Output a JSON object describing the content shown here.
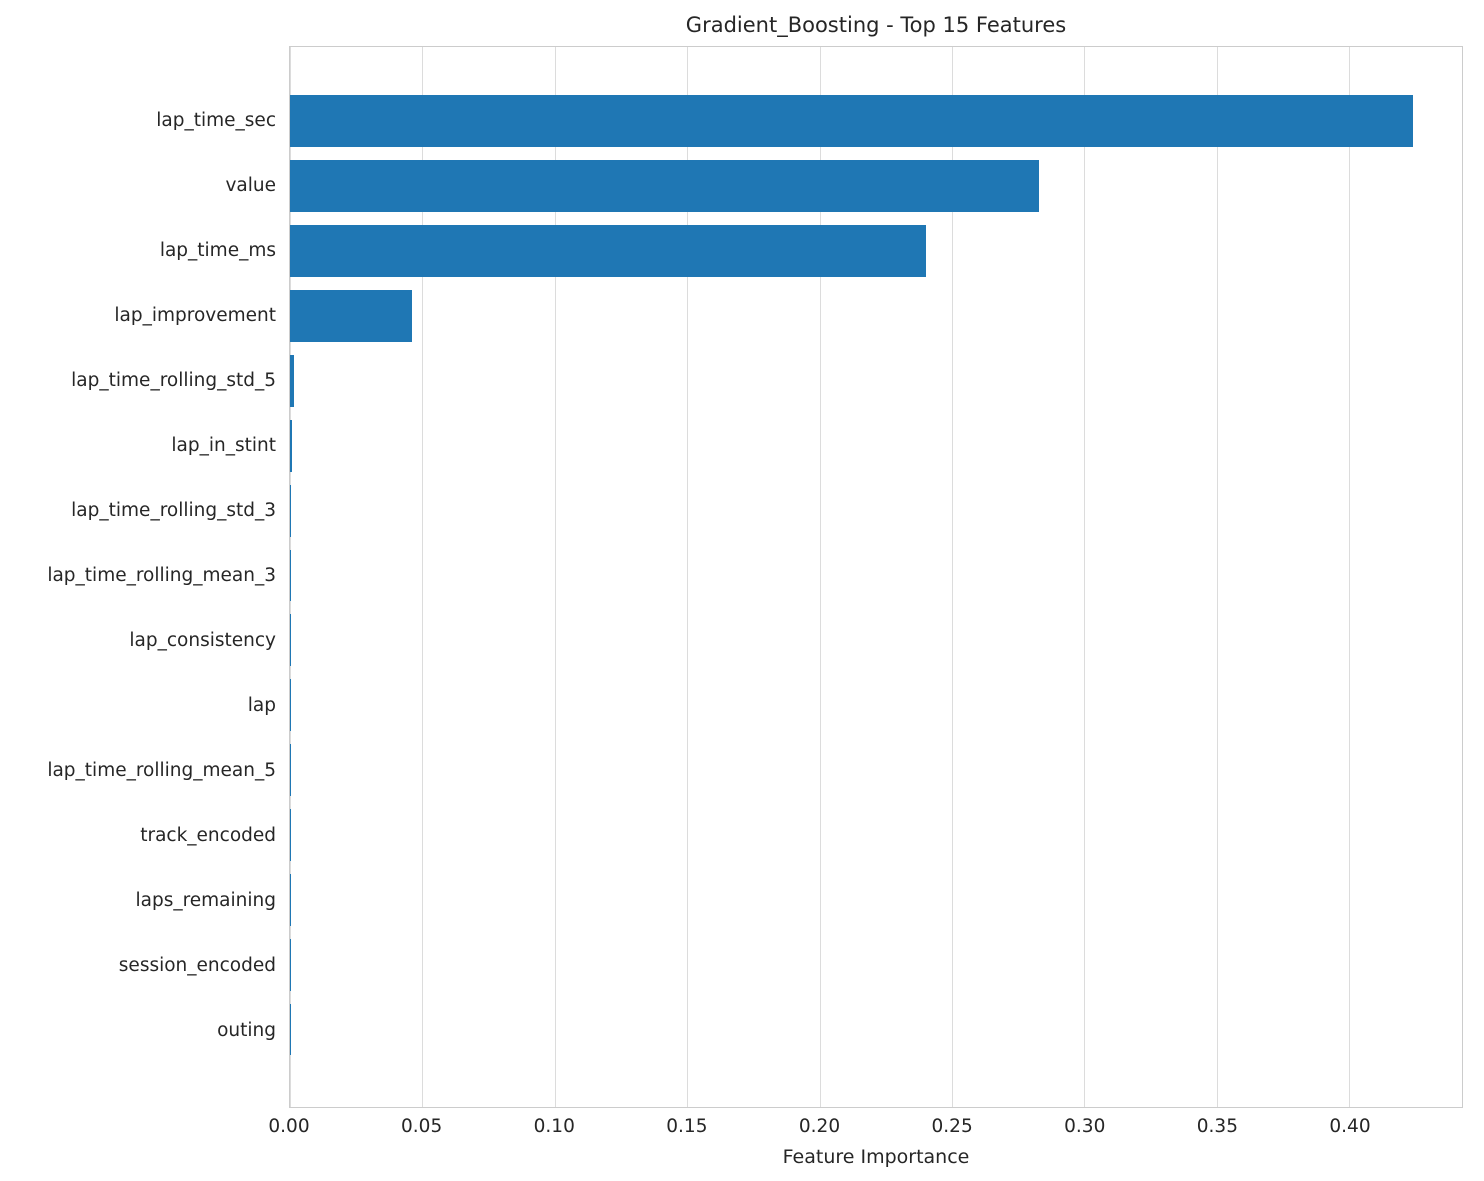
{
  "chart_data": {
    "type": "bar",
    "orientation": "horizontal",
    "title": "Gradient_Boosting - Top 15 Features",
    "xlabel": "Feature Importance",
    "ylabel": "",
    "categories": [
      "lap_time_sec",
      "value",
      "lap_time_ms",
      "lap_improvement",
      "lap_time_rolling_std_5",
      "lap_in_stint",
      "lap_time_rolling_std_3",
      "lap_time_rolling_mean_3",
      "lap_consistency",
      "lap",
      "lap_time_rolling_mean_5",
      "track_encoded",
      "laps_remaining",
      "session_encoded",
      "outing"
    ],
    "values": [
      0.424,
      0.283,
      0.24,
      0.046,
      0.0015,
      0.0006,
      0.0005,
      0.0004,
      0.0003,
      0.0003,
      0.0002,
      0.0002,
      0.0001,
      0.0001,
      5e-05
    ],
    "xlim": [
      0,
      0.4426
    ],
    "xticks": [
      0.0,
      0.05,
      0.1,
      0.15,
      0.2,
      0.25,
      0.3,
      0.35,
      0.4
    ],
    "xtick_labels": [
      "0.00",
      "0.05",
      "0.10",
      "0.15",
      "0.20",
      "0.25",
      "0.30",
      "0.35",
      "0.40"
    ],
    "grid": true,
    "legend": false,
    "bar_color": "#1f77b4",
    "grid_color": "#dcdcdc",
    "text_color": "#262626"
  }
}
